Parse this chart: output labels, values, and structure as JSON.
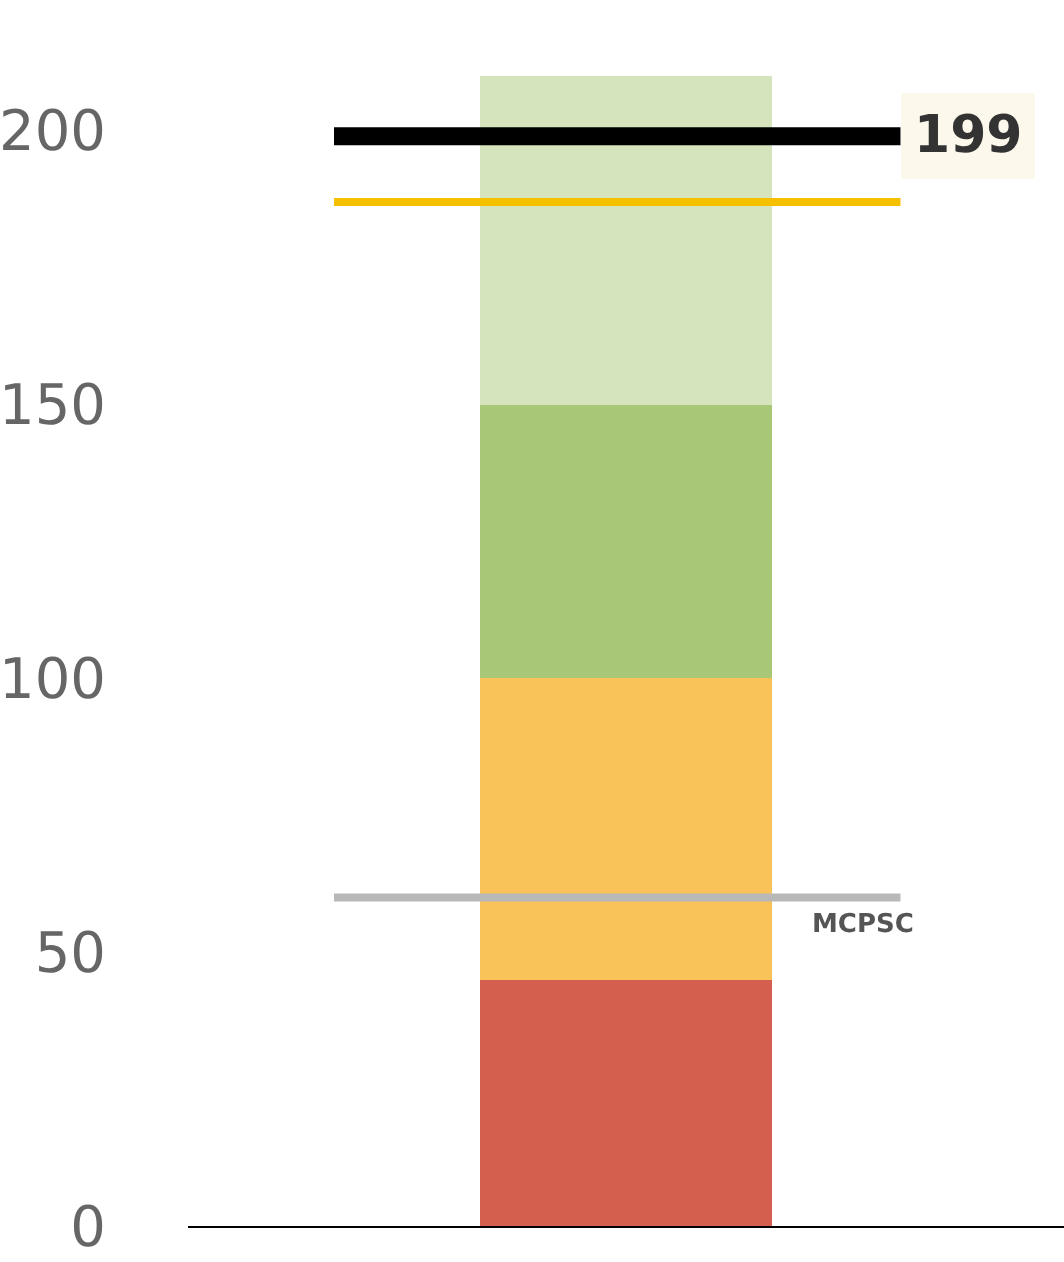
{
  "chart_data": {
    "type": "bar",
    "stacked": true,
    "categories": [
      null
    ],
    "series": [
      {
        "color": "#d45f4f",
        "values": [
          45
        ]
      },
      {
        "color": "#f9c35a",
        "values": [
          55
        ]
      },
      {
        "color": "#a8c878",
        "values": [
          50
        ]
      },
      {
        "color": "#d6e4be",
        "values": [
          60
        ]
      }
    ],
    "ylim": [
      0,
      210
    ],
    "yticks": [
      0,
      50,
      100,
      150,
      200
    ],
    "legend": false,
    "ref_lines": [
      {
        "axis": "y",
        "value": 199,
        "label": "199",
        "color": "#000000"
      },
      {
        "axis": "y",
        "value": 187,
        "label": null,
        "color": "#f5c000"
      },
      {
        "axis": "y",
        "value": 60,
        "label": "MCPSC",
        "color": "#b8b8b8"
      }
    ]
  }
}
